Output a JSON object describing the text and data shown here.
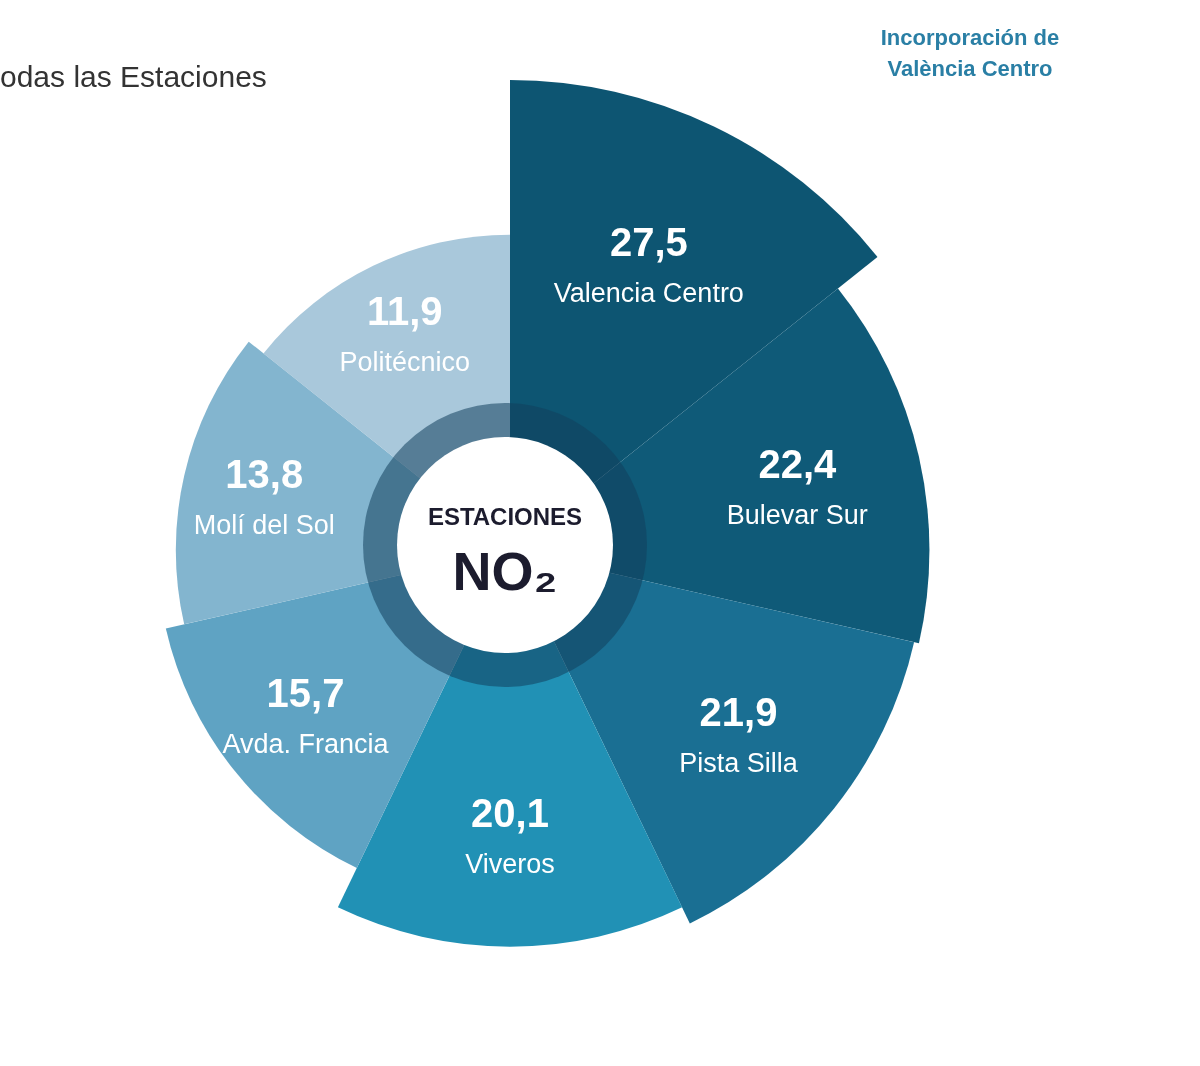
{
  "chart_data": {
    "type": "other",
    "title": "ESTACIONES",
    "subtitle": "NO₂",
    "categories": [
      "Valencia Centro",
      "Bulevar Sur",
      "Pista Silla",
      "Viveros",
      "Avda. Francia",
      "Molí del Sol",
      "Politécnico"
    ],
    "values": [
      27.5,
      22.4,
      21.9,
      20.1,
      15.7,
      13.8,
      11.9
    ],
    "colors": [
      "#0d5572",
      "#0f5a78",
      "#1a6f93",
      "#2191b5",
      "#5fa3c3",
      "#83b5cf",
      "#a9c8db"
    ],
    "value_labels": [
      "27,5",
      "22,4",
      "21,9",
      "20,1",
      "15,7",
      "13,8",
      "11,9"
    ],
    "annotations": [
      "odas las Estaciones",
      "Incorporación de València Centro"
    ]
  }
}
